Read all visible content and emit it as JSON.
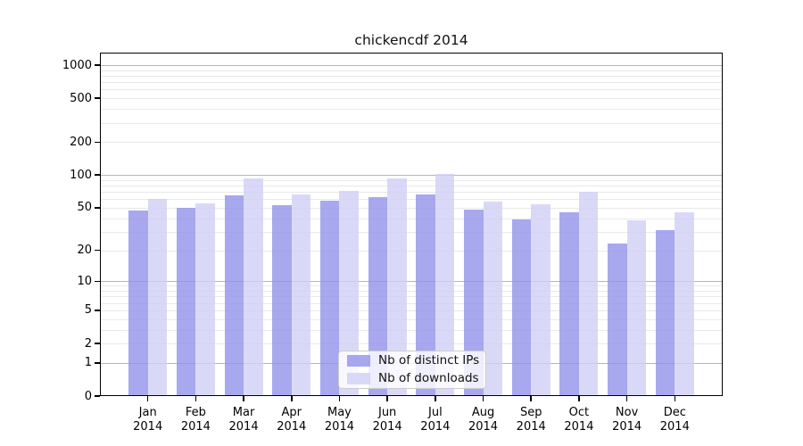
{
  "chart_data": {
    "type": "bar",
    "title": "chickencdf 2014",
    "categories": [
      "Jan",
      "Feb",
      "Mar",
      "Apr",
      "May",
      "Jun",
      "Jul",
      "Aug",
      "Sep",
      "Oct",
      "Nov",
      "Dec"
    ],
    "year_label": "2014",
    "series": [
      {
        "name": "Nb of distinct IPs",
        "color": "rgba(146,146,234,0.8)",
        "values": [
          47,
          50,
          65,
          53,
          58,
          63,
          66,
          48,
          39,
          45,
          23,
          31
        ]
      },
      {
        "name": "Nb of downloads",
        "color": "rgba(208,208,245,0.8)",
        "values": [
          60,
          55,
          93,
          66,
          72,
          94,
          102,
          57,
          54,
          70,
          38,
          45
        ]
      }
    ],
    "xlabel": "",
    "ylabel": "",
    "yscale": "log1p",
    "yticks": [
      0,
      1,
      2,
      5,
      10,
      20,
      50,
      100,
      200,
      500,
      1000
    ],
    "ylim": [
      0,
      1300
    ],
    "grid": "both",
    "legend_position": "lower center"
  },
  "colors": {
    "major_grid": "#b5b5b5",
    "minor_grid": "#e9e9e9",
    "axis": "#000000",
    "background": "#ffffff",
    "text": "#000000"
  }
}
